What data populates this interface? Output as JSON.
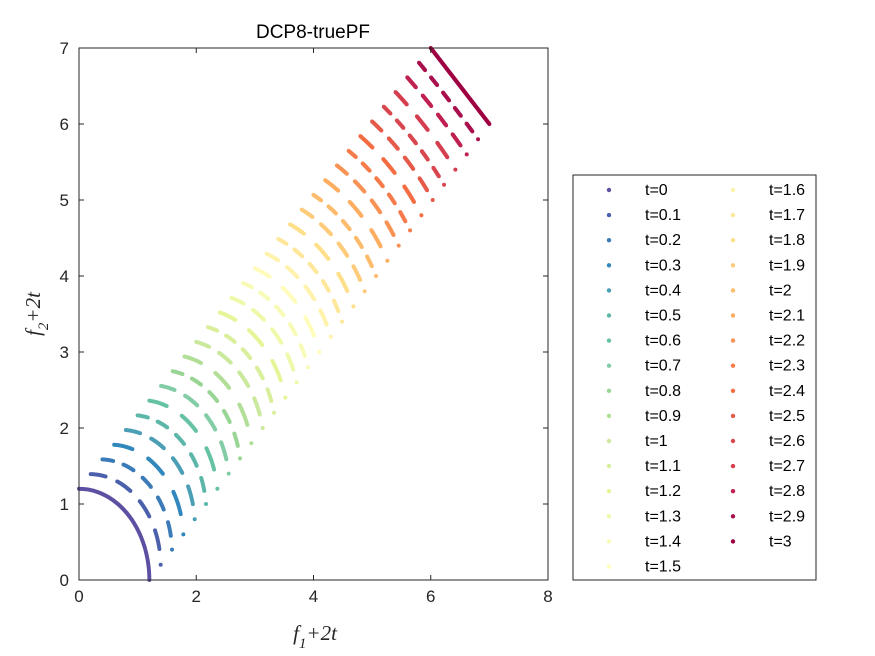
{
  "chart_data": {
    "type": "scatter",
    "title": "DCP8-truePF",
    "xlabel": "f_1+2t",
    "ylabel": "f_2+2t",
    "xlim": [
      0,
      8
    ],
    "ylim": [
      0,
      7
    ],
    "xticks": [
      "0",
      "2",
      "4",
      "6",
      "8"
    ],
    "yticks": [
      "0",
      "1",
      "2",
      "3",
      "4",
      "5",
      "6",
      "7"
    ],
    "grid": false,
    "legend_placement": "outside-right",
    "series": [
      {
        "name": "t=0",
        "t": 0.0,
        "color": "#5e4fa2"
      },
      {
        "name": "t=0.1",
        "t": 0.1,
        "color": "#4c61ab"
      },
      {
        "name": "t=0.2",
        "t": 0.2,
        "color": "#3b7bb8"
      },
      {
        "name": "t=0.3",
        "t": 0.3,
        "color": "#3288bd"
      },
      {
        "name": "t=0.4",
        "t": 0.4,
        "color": "#4a9fb5"
      },
      {
        "name": "t=0.5",
        "t": 0.5,
        "color": "#5cb7a9"
      },
      {
        "name": "t=0.6",
        "t": 0.6,
        "color": "#66c2a5"
      },
      {
        "name": "t=0.7",
        "t": 0.7,
        "color": "#82cda5"
      },
      {
        "name": "t=0.8",
        "t": 0.8,
        "color": "#99d594"
      },
      {
        "name": "t=0.9",
        "t": 0.9,
        "color": "#b2df97"
      },
      {
        "name": "t=1",
        "t": 1.0,
        "color": "#cbe99d"
      },
      {
        "name": "t=1.1",
        "t": 1.1,
        "color": "#d9ef9b"
      },
      {
        "name": "t=1.2",
        "t": 1.2,
        "color": "#e6f598"
      },
      {
        "name": "t=1.3",
        "t": 1.3,
        "color": "#f0f9aa"
      },
      {
        "name": "t=1.4",
        "t": 1.4,
        "color": "#f8fbb8"
      },
      {
        "name": "t=1.5",
        "t": 1.5,
        "color": "#fffcbc"
      },
      {
        "name": "t=1.6",
        "t": 1.6,
        "color": "#fff2ac"
      },
      {
        "name": "t=1.7",
        "t": 1.7,
        "color": "#fee79a"
      },
      {
        "name": "t=1.8",
        "t": 1.8,
        "color": "#fee08b"
      },
      {
        "name": "t=1.9",
        "t": 1.9,
        "color": "#fdcb7a"
      },
      {
        "name": "t=2",
        "t": 2.0,
        "color": "#fdbb6c"
      },
      {
        "name": "t=2.1",
        "t": 2.1,
        "color": "#fdae61"
      },
      {
        "name": "t=2.2",
        "t": 2.2,
        "color": "#f99355"
      },
      {
        "name": "t=2.3",
        "t": 2.3,
        "color": "#f67b4a"
      },
      {
        "name": "t=2.4",
        "t": 2.4,
        "color": "#f46d43"
      },
      {
        "name": "t=2.5",
        "t": 2.5,
        "color": "#e55a49"
      },
      {
        "name": "t=2.6",
        "t": 2.6,
        "color": "#d9474e"
      },
      {
        "name": "t=2.7",
        "t": 2.7,
        "color": "#d53e4f"
      },
      {
        "name": "t=2.8",
        "t": 2.8,
        "color": "#bf2150"
      },
      {
        "name": "t=2.9",
        "t": 2.9,
        "color": "#a9114d"
      },
      {
        "name": "t=3",
        "t": 3.0,
        "color": "#9e0142"
      }
    ]
  }
}
